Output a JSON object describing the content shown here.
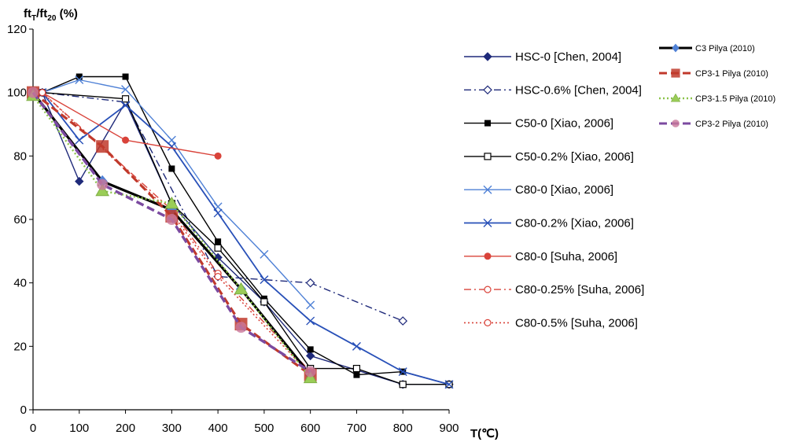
{
  "chart_data": {
    "type": "line",
    "ylabel_main": "ft",
    "ylabel_sub1": "T",
    "ylabel_mid": "/ft",
    "ylabel_sub2": "20",
    "ylabel_tail": " (%)",
    "xlabel": "T(℃)",
    "xlim": [
      0,
      900
    ],
    "ylim": [
      0,
      120
    ],
    "xticks": [
      0,
      100,
      200,
      300,
      400,
      500,
      600,
      700,
      800,
      900
    ],
    "yticks": [
      0,
      20,
      40,
      60,
      80,
      100,
      120
    ],
    "grid": false,
    "legend_placement": "right",
    "series": [
      {
        "name": "HSC-0 [Chen, 2004]",
        "color": "#1f2a7a",
        "dash": "solid",
        "marker": "diamond-filled",
        "width": 1.4,
        "legend_col": 1,
        "points": [
          [
            20,
            100
          ],
          [
            100,
            72
          ],
          [
            200,
            97
          ],
          [
            300,
            65
          ],
          [
            400,
            48
          ],
          [
            500,
            34
          ],
          [
            600,
            17
          ],
          [
            800,
            8
          ],
          [
            900,
            8
          ]
        ]
      },
      {
        "name": "HSC-0.6% [Chen, 2004]",
        "color": "#1f2a7a",
        "dash": "dashdot",
        "marker": "diamond-open",
        "width": 1.4,
        "legend_col": 1,
        "points": [
          [
            20,
            100
          ],
          [
            200,
            97
          ],
          [
            400,
            42
          ],
          [
            600,
            40
          ],
          [
            800,
            28
          ]
        ]
      },
      {
        "name": "C50-0 [Xiao, 2006]",
        "color": "#000000",
        "dash": "solid",
        "marker": "square-filled",
        "width": 1.4,
        "legend_col": 1,
        "points": [
          [
            20,
            100
          ],
          [
            100,
            105
          ],
          [
            200,
            105
          ],
          [
            300,
            76
          ],
          [
            400,
            53
          ],
          [
            500,
            35
          ],
          [
            600,
            19
          ],
          [
            700,
            11
          ],
          [
            800,
            12
          ],
          [
            900,
            8
          ]
        ]
      },
      {
        "name": "C50-0.2% [Xiao, 2006]",
        "color": "#000000",
        "dash": "solid",
        "marker": "square-open",
        "width": 1.4,
        "legend_col": 1,
        "points": [
          [
            20,
            100
          ],
          [
            200,
            98
          ],
          [
            300,
            65
          ],
          [
            400,
            51
          ],
          [
            500,
            34
          ],
          [
            600,
            13
          ],
          [
            700,
            13
          ],
          [
            800,
            8
          ],
          [
            900,
            8
          ]
        ]
      },
      {
        "name": "C80-0 [Xiao, 2006]",
        "color": "#4f81d6",
        "dash": "solid",
        "marker": "x",
        "width": 1.4,
        "legend_col": 1,
        "points": [
          [
            20,
            100
          ],
          [
            100,
            104
          ],
          [
            200,
            101
          ],
          [
            300,
            85
          ],
          [
            400,
            64
          ],
          [
            500,
            49
          ],
          [
            600,
            33
          ]
        ]
      },
      {
        "name": "C80-0.2% [Xiao, 2006]",
        "color": "#2850b8",
        "dash": "solid",
        "marker": "x",
        "width": 1.8,
        "legend_col": 1,
        "points": [
          [
            20,
            100
          ],
          [
            100,
            85
          ],
          [
            200,
            96
          ],
          [
            300,
            83
          ],
          [
            400,
            62
          ],
          [
            500,
            41
          ],
          [
            600,
            28
          ],
          [
            700,
            20
          ],
          [
            800,
            12
          ],
          [
            900,
            8
          ]
        ]
      },
      {
        "name": "C80-0 [Suha, 2006]",
        "color": "#d9433a",
        "dash": "solid",
        "marker": "circle-filled",
        "width": 1.4,
        "legend_col": 1,
        "points": [
          [
            20,
            100
          ],
          [
            200,
            85
          ],
          [
            400,
            80
          ]
        ]
      },
      {
        "name": "C80-0.25% [Suha, 2006]",
        "color": "#d9433a",
        "dash": "dashdot",
        "marker": "circle-open",
        "width": 1.4,
        "legend_col": 1,
        "points": [
          [
            20,
            100
          ],
          [
            300,
            63
          ],
          [
            400,
            43
          ],
          [
            600,
            12
          ]
        ]
      },
      {
        "name": "C80-0.5% [Suha, 2006]",
        "color": "#d9433a",
        "dash": "dotted",
        "marker": "circle-open",
        "width": 1.6,
        "legend_col": 1,
        "points": [
          [
            20,
            100
          ],
          [
            300,
            62
          ],
          [
            400,
            42
          ],
          [
            600,
            11
          ]
        ]
      },
      {
        "name": "C3 Pilya (2010)",
        "color": "#000000",
        "dash": "solid",
        "marker": "diamond-small",
        "width": 3.2,
        "legend_col": 2,
        "points": [
          [
            0,
            100
          ],
          [
            150,
            72
          ],
          [
            300,
            63
          ],
          [
            450,
            38
          ],
          [
            600,
            11
          ]
        ]
      },
      {
        "name": "CP3-1 Pilya (2010)",
        "color": "#c0392b",
        "dash": "dashed",
        "marker": "square-big",
        "width": 3.2,
        "legend_col": 2,
        "points": [
          [
            0,
            100
          ],
          [
            150,
            83
          ],
          [
            300,
            61
          ],
          [
            450,
            27
          ],
          [
            600,
            11
          ]
        ]
      },
      {
        "name": "CP3-1.5 Pilya (2010)",
        "color": "#8bc34a",
        "dash": "dotted",
        "marker": "triangle",
        "width": 2.4,
        "legend_col": 2,
        "points": [
          [
            0,
            99
          ],
          [
            150,
            69
          ],
          [
            300,
            65
          ],
          [
            450,
            38
          ],
          [
            600,
            10
          ]
        ]
      },
      {
        "name": "CP3-2 Pilya (2010)",
        "color": "#7b4aa0",
        "dash": "dashed",
        "marker": "circle-big",
        "width": 3.4,
        "legend_col": 2,
        "points": [
          [
            0,
            100
          ],
          [
            150,
            71
          ],
          [
            300,
            60
          ],
          [
            450,
            26
          ],
          [
            600,
            12
          ]
        ]
      }
    ]
  }
}
